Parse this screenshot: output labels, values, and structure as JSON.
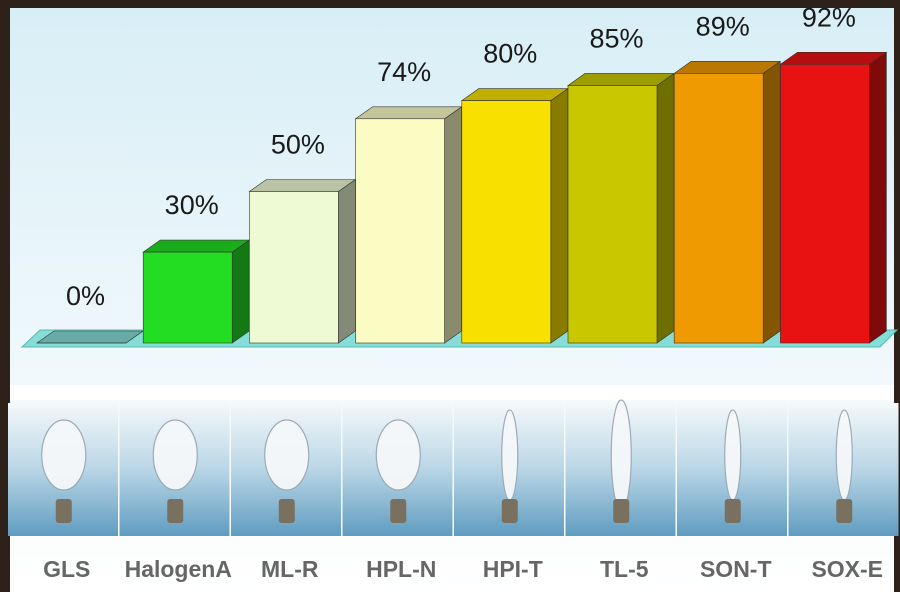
{
  "chart_data": {
    "type": "bar",
    "categories": [
      "GLS",
      "HalogenA",
      "ML-R",
      "HPL-N",
      "HPI-T",
      "TL-5",
      "SON-T",
      "SOX-E"
    ],
    "values": [
      0,
      30,
      50,
      74,
      80,
      85,
      89,
      92
    ],
    "value_labels": [
      "0%",
      "30%",
      "50%",
      "74%",
      "80%",
      "85%",
      "89%",
      "92%"
    ],
    "colors": [
      "#86dcd6",
      "#22dd22",
      "#eefad4",
      "#fbfcc4",
      "#f8e000",
      "#c9c800",
      "#ee9a00",
      "#e81212"
    ]
  }
}
